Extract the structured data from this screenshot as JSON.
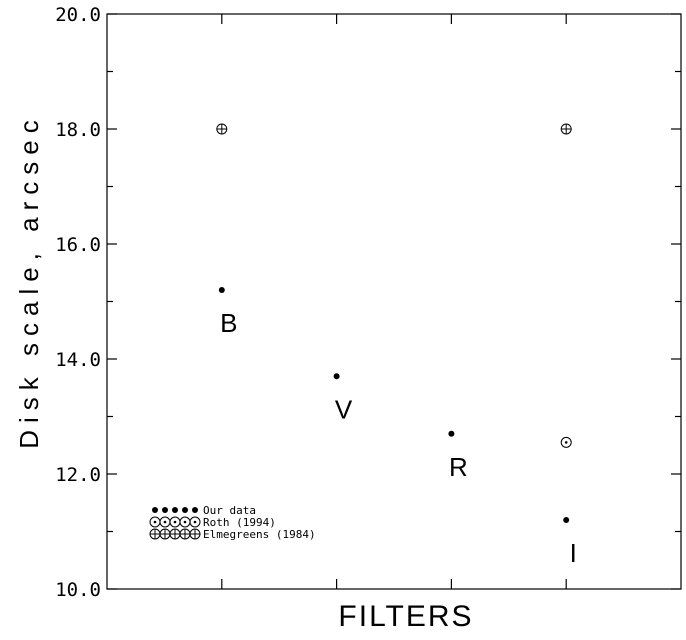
{
  "chart_data": {
    "type": "scatter",
    "xlabel": "FILTERS",
    "ylabel": "Disk scale, arcsec",
    "ylim": [
      10.0,
      20.0
    ],
    "yticks": [
      "10.0",
      "12.0",
      "14.0",
      "16.0",
      "18.0",
      "20.0"
    ],
    "categories": [
      "B",
      "V",
      "R",
      "I"
    ],
    "series": [
      {
        "name": "Our data",
        "marker": "filled-dot",
        "points": [
          {
            "x": "B",
            "y": 15.2
          },
          {
            "x": "V",
            "y": 13.7
          },
          {
            "x": "R",
            "y": 12.7
          },
          {
            "x": "I",
            "y": 11.2
          }
        ]
      },
      {
        "name": "Roth (1994)",
        "marker": "circle-dot",
        "points": [
          {
            "x": "I",
            "y": 12.55
          }
        ]
      },
      {
        "name": "Elmegreens (1984)",
        "marker": "circle-plus",
        "points": [
          {
            "x": "B",
            "y": 18.0
          },
          {
            "x": "I",
            "y": 18.0
          }
        ]
      }
    ],
    "legend_placement": "bottom-left",
    "grid": false
  }
}
